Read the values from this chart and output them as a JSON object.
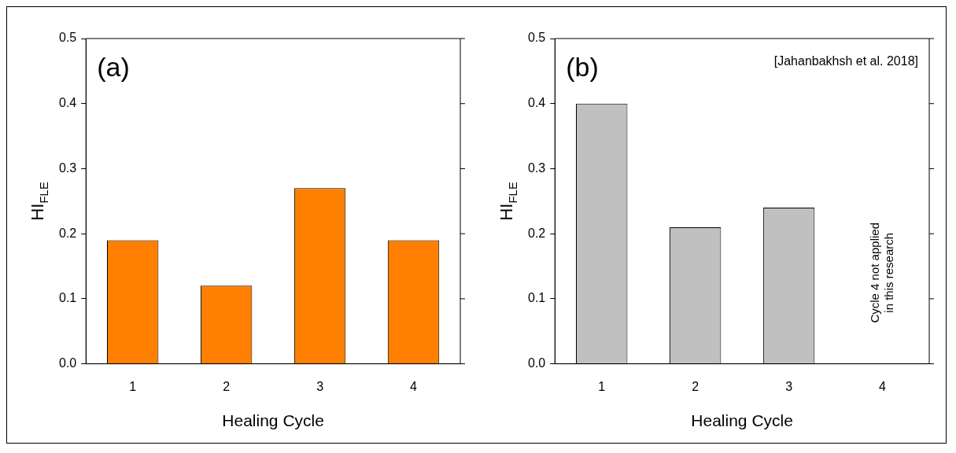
{
  "chart_data": [
    {
      "type": "bar",
      "title": "(a)",
      "xlabel": "Healing Cycle",
      "ylabel": "HI$_{FLE}$",
      "categories": [
        "1",
        "2",
        "3",
        "4"
      ],
      "values": [
        0.19,
        0.12,
        0.27,
        0.19
      ],
      "color": "#ff8000",
      "ylim": [
        0,
        0.5
      ],
      "yticks": [
        {
          "value": 0,
          "label": "0.0"
        },
        0.1,
        0.2,
        0.3,
        0.4,
        0.5
      ],
      "grid": false,
      "legend": false
    },
    {
      "type": "bar",
      "title": "(b)",
      "xlabel": "Healing Cycle",
      "ylabel": "HI$_{FLE}$",
      "categories": [
        "1",
        "2",
        "3",
        "4"
      ],
      "values": [
        0.4,
        0.21,
        0.24,
        null
      ],
      "color": "#c0c0c0",
      "ylim": [
        0,
        0.5
      ],
      "yticks": [
        {
          "value": 0,
          "label": "0.0"
        },
        0.1,
        0.2,
        0.3,
        0.4,
        0.5
      ],
      "grid": false,
      "legend": false,
      "annotations": [
        "[Jahanbakhsh et al. 2018]",
        "Cycle 4 not applied\nin this research"
      ]
    }
  ]
}
